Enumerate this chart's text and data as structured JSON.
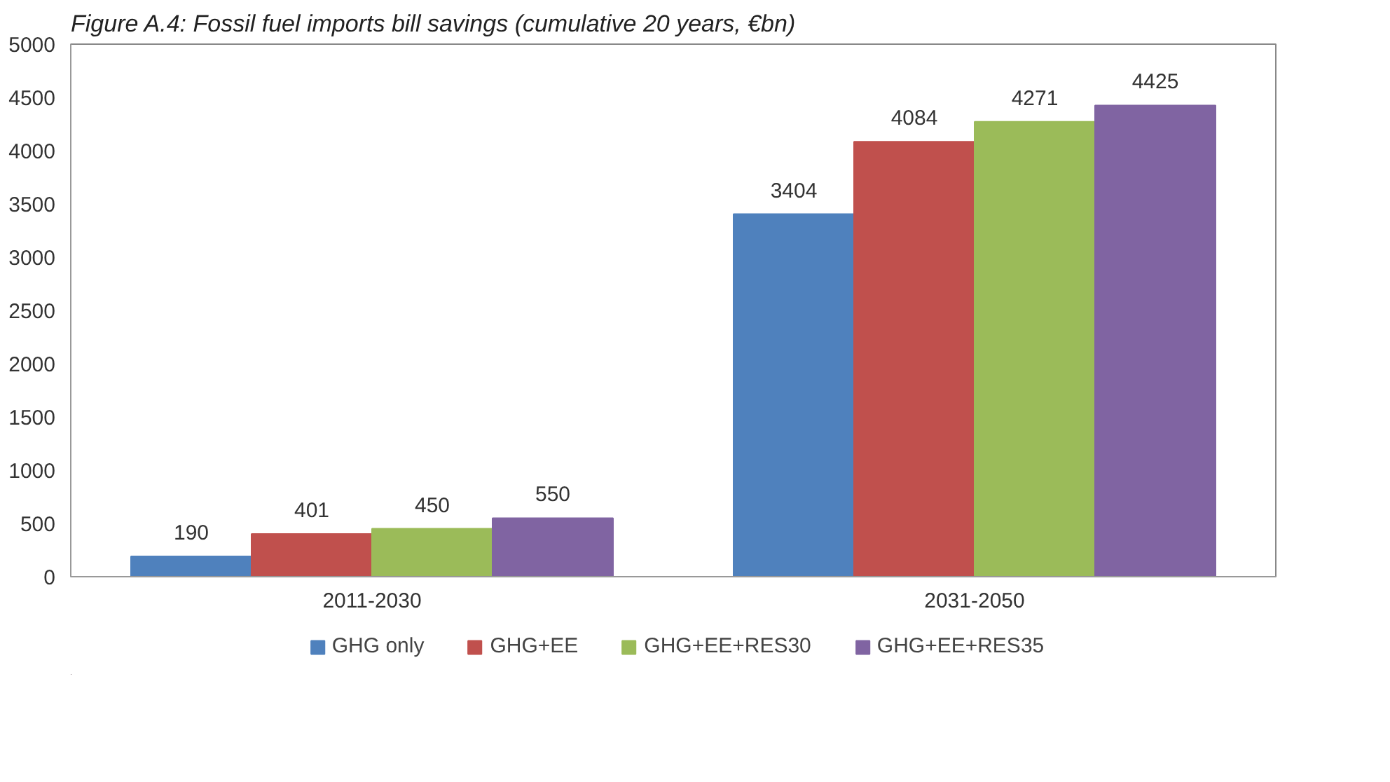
{
  "chart_data": {
    "type": "bar",
    "title": "Figure A.4: Fossil fuel imports bill savings (cumulative 20 years, €bn)",
    "categories": [
      "2011-2030",
      "2031-2050"
    ],
    "series": [
      {
        "name": "GHG only",
        "color": "#4f81bd",
        "values": [
          190,
          3404
        ]
      },
      {
        "name": "GHG+EE",
        "color": "#c0504d",
        "values": [
          401,
          4084
        ]
      },
      {
        "name": "GHG+EE+RES30",
        "color": "#9bbb59",
        "values": [
          450,
          4271
        ]
      },
      {
        "name": "GHG+EE+RES35",
        "color": "#8064a2",
        "values": [
          550,
          4425
        ]
      }
    ],
    "ylim": [
      0,
      5000
    ],
    "yticks": [
      0,
      500,
      1000,
      1500,
      2000,
      2500,
      3000,
      3500,
      4000,
      4500,
      5000
    ],
    "grid": false,
    "legend": "bottom",
    "data_labels": true
  }
}
